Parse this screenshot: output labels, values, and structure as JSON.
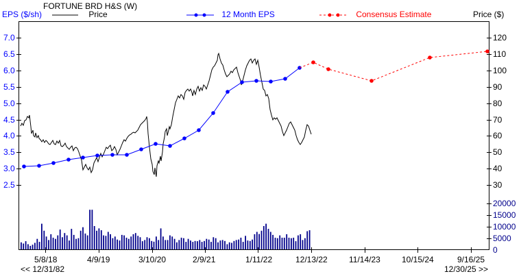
{
  "header": {
    "company": "FORTUNE BRD H&S (W)",
    "left_axis_title": "EPS ($/sh)",
    "right_axis_title": "Price ($)",
    "legend": {
      "price": "Price",
      "eps": "12 Month EPS",
      "consensus": "Consensus Estimate"
    }
  },
  "navigation": {
    "back_label": "<< 12/31/82",
    "forward_label": "12/30/25 >>"
  },
  "colors": {
    "price": "#000000",
    "eps": "#0000ff",
    "consensus": "#ff0000",
    "volume": "#00008b",
    "eps_axis_text": "#0000ff",
    "volume_axis_text": "#00008b"
  },
  "chart_data": {
    "type": "line",
    "title": "FORTUNE BRD H&S (W)",
    "xlabel": "",
    "ylabel_left": "EPS ($/sh)",
    "ylabel_right": "Price ($)",
    "x_tick_labels": [
      "5/8/18",
      "4/9/19",
      "3/10/20",
      "2/9/21",
      "1/11/22",
      "12/13/22",
      "11/14/23",
      "10/15/24",
      "9/16/25"
    ],
    "left_ticks": [
      "7.0",
      "6.5",
      "6.0",
      "5.5",
      "5.0",
      "4.5",
      "4.0",
      "3.5",
      "3.0",
      "2.5"
    ],
    "right_ticks": [
      "120",
      "110",
      "100",
      "90",
      "80",
      "70",
      "60",
      "50",
      "40",
      "30"
    ],
    "volume_ticks": [
      "20000",
      "15000",
      "10000",
      "5000",
      "0"
    ],
    "eps_range": [
      2.5,
      7.0
    ],
    "price_range": [
      30,
      120
    ],
    "volume_range": [
      0,
      20000
    ],
    "series": [
      {
        "name": "12 Month EPS",
        "axis": "left",
        "x": [
          "2018-01",
          "2018-04",
          "2018-07",
          "2018-10",
          "2019-01",
          "2019-04",
          "2019-07",
          "2019-10",
          "2020-01",
          "2020-04",
          "2020-07",
          "2020-10",
          "2021-01",
          "2021-04",
          "2021-07",
          "2021-10",
          "2022-01",
          "2022-04",
          "2022-07",
          "2022-10"
        ],
        "values": [
          3.07,
          3.1,
          3.18,
          3.28,
          3.35,
          3.41,
          3.44,
          3.44,
          3.6,
          3.78,
          3.72,
          3.95,
          4.2,
          4.72,
          5.37,
          5.66,
          5.71,
          5.69,
          5.77,
          6.1
        ]
      },
      {
        "name": "Consensus Estimate",
        "axis": "left",
        "x": [
          "2023-01",
          "2023-04",
          "2023-12",
          "2024-12",
          "2025-12"
        ],
        "values": [
          6.27,
          6.06,
          5.7,
          6.41,
          6.6
        ]
      },
      {
        "name": "Price",
        "axis": "right",
        "x_range": [
          "2018-01",
          "2022-12"
        ],
        "approx_values": [
          72,
          76,
          78,
          64,
          62,
          60,
          59,
          60,
          55,
          52,
          47,
          48,
          52,
          56,
          58,
          54,
          52,
          56,
          65,
          60,
          72,
          67,
          76,
          88,
          90,
          96,
          99,
          95,
          96,
          104,
          112,
          104,
          100,
          96,
          112,
          108,
          94,
          82,
          75,
          67,
          62,
          66,
          63,
          60,
          63,
          59,
          61
        ]
      },
      {
        "name": "Volume",
        "axis": "volume",
        "approx_values": [
          3000,
          2500,
          3500,
          2200,
          1500,
          2000,
          2800,
          4500,
          3200,
          11000,
          8000,
          5500,
          4000,
          6500,
          5000,
          4500,
          6000,
          8500,
          5200,
          7000,
          6000,
          3800,
          8800,
          6200,
          4500,
          4800,
          8000,
          9500,
          6800,
          6000,
          17000,
          17000,
          10000,
          8000,
          9000,
          8200,
          6000,
          5800,
          7500,
          6500,
          4800,
          5500,
          4200,
          3800,
          6200,
          6000,
          5000,
          4500,
          5500,
          6500,
          7000,
          5800,
          5200,
          3500,
          4000,
          5200,
          4800,
          3600,
          3300,
          5500,
          4000,
          9000,
          5500,
          4000,
          4000,
          6000,
          5500,
          4500,
          3000,
          4000,
          5000,
          4800,
          3200,
          4500,
          3800,
          3200,
          3600,
          3500,
          4000,
          3200,
          3600,
          4500,
          4200,
          3200,
          5200,
          4800,
          3000,
          3800,
          4000,
          3600,
          2200,
          3000,
          2800,
          3600,
          4000,
          4200,
          5000,
          3200,
          5800,
          3800,
          3600,
          4200,
          6500,
          7500,
          6600,
          8000,
          10000,
          11000,
          8800,
          7500,
          6200,
          5000,
          4800,
          6000,
          5000,
          5000,
          6500,
          5000,
          4800,
          5000,
          3500,
          6000,
          6500,
          4000,
          4800,
          7800,
          8200
        ]
      }
    ],
    "grid": false,
    "legend_position": "top"
  }
}
